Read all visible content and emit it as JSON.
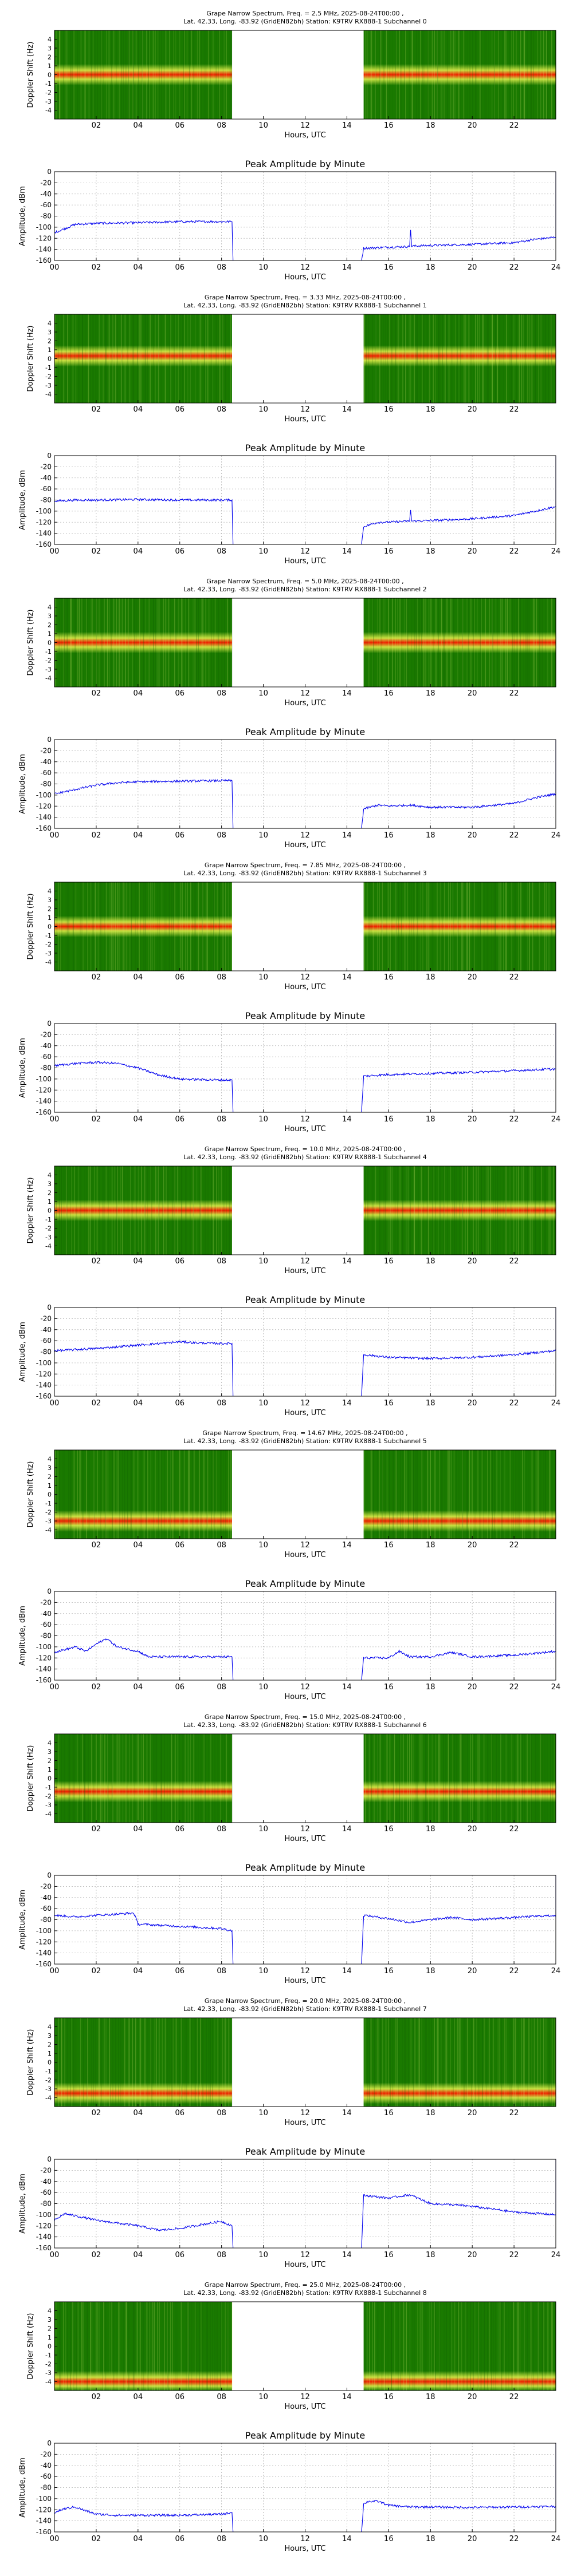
{
  "station_line": "Lat.  42.33, Long. -83.92 (GridEN82bh) Station: K9TRV RX888-1 Subchannel",
  "spectrum_ylabel": "Doppler Shift (Hz)",
  "amp_ylabel": "Amplitude, dBm",
  "xlabel": "Hours, UTC",
  "amp_title": "Peak Amplitude by Minute",
  "spectrum_yticks": [
    "-4",
    "-3",
    "-2",
    "-1",
    "0",
    "1",
    "2",
    "3",
    "4"
  ],
  "spectrum_xticks": [
    "02",
    "04",
    "06",
    "08",
    "10",
    "12",
    "14",
    "16",
    "18",
    "20",
    "22"
  ],
  "amp_yticks": [
    "0",
    "-20",
    "-40",
    "-60",
    "-80",
    "-100",
    "-120",
    "-140",
    "-160"
  ],
  "amp_xticks": [
    "00",
    "02",
    "04",
    "06",
    "08",
    "10",
    "12",
    "14",
    "16",
    "18",
    "20",
    "22",
    "24"
  ],
  "colors": {
    "trace": "#0000ee",
    "grid": "#b0b0b0",
    "spectrum_low": "#1a7a00",
    "spectrum_mid": "#c8e040",
    "spectrum_high": "#ee2000"
  },
  "panels": [
    {
      "title": "Grape Narrow Spectrum, Freq. = 2.5 MHz, 2025-08-24T00:00 ,",
      "subchannel": "0"
    },
    {
      "title": "Grape Narrow Spectrum, Freq. = 3.33 MHz, 2025-08-24T00:00 ,",
      "subchannel": "1"
    },
    {
      "title": "Grape Narrow Spectrum, Freq. = 5.0 MHz, 2025-08-24T00:00 ,",
      "subchannel": "2"
    },
    {
      "title": "Grape Narrow Spectrum, Freq. = 7.85 MHz, 2025-08-24T00:00 ,",
      "subchannel": "3"
    },
    {
      "title": "Grape Narrow Spectrum, Freq. = 10.0 MHz, 2025-08-24T00:00 ,",
      "subchannel": "4"
    },
    {
      "title": "Grape Narrow Spectrum, Freq. = 14.67 MHz, 2025-08-24T00:00 ,",
      "subchannel": "5"
    },
    {
      "title": "Grape Narrow Spectrum, Freq. = 15.0 MHz, 2025-08-24T00:00 ,",
      "subchannel": "6"
    },
    {
      "title": "Grape Narrow Spectrum, Freq. = 20.0 MHz, 2025-08-24T00:00 ,",
      "subchannel": "7"
    },
    {
      "title": "Grape Narrow Spectrum, Freq. = 25.0 MHz, 2025-08-24T00:00 ,",
      "subchannel": "8"
    }
  ],
  "chart_data": [
    {
      "type": "heatmap",
      "title": "Grape Narrow Spectrum, Freq. = 2.5 MHz",
      "xlabel": "Hours, UTC",
      "ylabel": "Doppler Shift (Hz)",
      "xlim": [
        0,
        24
      ],
      "ylim": [
        -5,
        5
      ],
      "data_gap_hours": [
        8.5,
        14.8
      ],
      "carrier_doppler_hz": 0
    },
    {
      "type": "line",
      "title": "Peak Amplitude by Minute",
      "xlabel": "Hours, UTC",
      "ylabel": "Amplitude, dBm",
      "xlim": [
        0,
        24
      ],
      "ylim": [
        -160,
        0
      ],
      "series": [
        {
          "x": [
            0,
            1,
            2,
            4,
            6,
            8,
            8.5,
            8.55,
            14.7,
            14.8,
            16,
            17,
            17.05,
            17.1,
            18,
            20,
            22,
            23,
            24
          ],
          "y": [
            -110,
            -95,
            -93,
            -92,
            -90,
            -90,
            -90,
            -160,
            -160,
            -138,
            -136,
            -135,
            -105,
            -134,
            -133,
            -131,
            -128,
            -122,
            -118
          ]
        }
      ]
    },
    {
      "type": "heatmap",
      "title": "Grape Narrow Spectrum, Freq. = 3.33 MHz",
      "xlabel": "Hours, UTC",
      "ylabel": "Doppler Shift (Hz)",
      "xlim": [
        0,
        24
      ],
      "ylim": [
        -5,
        5
      ],
      "data_gap_hours": [
        8.5,
        14.8
      ],
      "carrier_doppler_hz": 0.3
    },
    {
      "type": "line",
      "title": "Peak Amplitude by Minute",
      "xlabel": "Hours, UTC",
      "ylabel": "Amplitude, dBm",
      "xlim": [
        0,
        24
      ],
      "ylim": [
        -160,
        0
      ],
      "series": [
        {
          "x": [
            0,
            1,
            2,
            4,
            6,
            8,
            8.5,
            8.55,
            14.7,
            14.8,
            15.5,
            16,
            17,
            17.05,
            17.1,
            18,
            20,
            22,
            23,
            24
          ],
          "y": [
            -82,
            -80,
            -80,
            -79,
            -80,
            -80,
            -80,
            -160,
            -160,
            -128,
            -120,
            -120,
            -118,
            -98,
            -118,
            -117,
            -114,
            -108,
            -100,
            -92
          ]
        }
      ]
    },
    {
      "type": "heatmap",
      "title": "Grape Narrow Spectrum, Freq. = 5.0 MHz",
      "xlabel": "Hours, UTC",
      "ylabel": "Doppler Shift (Hz)",
      "xlim": [
        0,
        24
      ],
      "ylim": [
        -5,
        5
      ],
      "data_gap_hours": [
        8.5,
        14.8
      ],
      "carrier_doppler_hz": 0
    },
    {
      "type": "line",
      "title": "Peak Amplitude by Minute",
      "xlabel": "Hours, UTC",
      "ylabel": "Amplitude, dBm",
      "xlim": [
        0,
        24
      ],
      "ylim": [
        -160,
        0
      ],
      "series": [
        {
          "x": [
            0,
            1,
            2,
            3,
            4,
            6,
            8,
            8.5,
            8.55,
            14.7,
            14.8,
            15.5,
            16,
            17,
            18,
            20,
            22,
            23,
            24
          ],
          "y": [
            -98,
            -90,
            -82,
            -78,
            -76,
            -75,
            -74,
            -74,
            -160,
            -160,
            -125,
            -118,
            -120,
            -118,
            -122,
            -122,
            -115,
            -105,
            -98
          ]
        }
      ]
    },
    {
      "type": "heatmap",
      "title": "Grape Narrow Spectrum, Freq. = 7.85 MHz",
      "xlabel": "Hours, UTC",
      "ylabel": "Doppler Shift (Hz)",
      "xlim": [
        0,
        24
      ],
      "ylim": [
        -5,
        5
      ],
      "data_gap_hours": [
        8.5,
        14.8
      ],
      "carrier_doppler_hz": 0
    },
    {
      "type": "line",
      "title": "Peak Amplitude by Minute",
      "xlabel": "Hours, UTC",
      "ylabel": "Amplitude, dBm",
      "xlim": [
        0,
        24
      ],
      "ylim": [
        -160,
        0
      ],
      "series": [
        {
          "x": [
            0,
            1,
            2,
            3,
            4,
            5,
            6,
            8,
            8.5,
            8.55,
            14.7,
            14.8,
            16,
            18,
            20,
            22,
            24
          ],
          "y": [
            -76,
            -72,
            -70,
            -72,
            -80,
            -93,
            -100,
            -102,
            -102,
            -160,
            -160,
            -95,
            -92,
            -90,
            -88,
            -85,
            -82
          ]
        }
      ]
    },
    {
      "type": "heatmap",
      "title": "Grape Narrow Spectrum, Freq. = 10.0 MHz",
      "xlabel": "Hours, UTC",
      "ylabel": "Doppler Shift (Hz)",
      "xlim": [
        0,
        24
      ],
      "ylim": [
        -5,
        5
      ],
      "data_gap_hours": [
        8.5,
        14.8
      ],
      "carrier_doppler_hz": 0
    },
    {
      "type": "line",
      "title": "Peak Amplitude by Minute",
      "xlabel": "Hours, UTC",
      "ylabel": "Amplitude, dBm",
      "xlim": [
        0,
        24
      ],
      "ylim": [
        -160,
        0
      ],
      "series": [
        {
          "x": [
            0,
            1,
            2,
            4,
            6,
            7,
            8,
            8.5,
            8.55,
            14.7,
            14.8,
            16,
            18,
            20,
            22,
            24
          ],
          "y": [
            -78,
            -76,
            -74,
            -68,
            -62,
            -64,
            -65,
            -65,
            -160,
            -160,
            -85,
            -90,
            -92,
            -90,
            -85,
            -78
          ]
        }
      ]
    },
    {
      "type": "heatmap",
      "title": "Grape Narrow Spectrum, Freq. = 14.67 MHz",
      "xlabel": "Hours, UTC",
      "ylabel": "Doppler Shift (Hz)",
      "xlim": [
        0,
        24
      ],
      "ylim": [
        -5,
        5
      ],
      "data_gap_hours": [
        8.5,
        14.8
      ],
      "carrier_doppler_hz": -3
    },
    {
      "type": "line",
      "title": "Peak Amplitude by Minute",
      "xlabel": "Hours, UTC",
      "ylabel": "Amplitude, dBm",
      "xlim": [
        0,
        24
      ],
      "ylim": [
        -160,
        0
      ],
      "series": [
        {
          "x": [
            0,
            1,
            1.5,
            2,
            2.5,
            3,
            4,
            4.5,
            5,
            6,
            8,
            8.5,
            8.55,
            14.7,
            14.8,
            16,
            16.5,
            17,
            18,
            19,
            20,
            22,
            24
          ],
          "y": [
            -110,
            -100,
            -108,
            -95,
            -85,
            -100,
            -108,
            -118,
            -118,
            -118,
            -118,
            -118,
            -160,
            -160,
            -120,
            -120,
            -108,
            -118,
            -118,
            -110,
            -118,
            -115,
            -108
          ]
        }
      ]
    },
    {
      "type": "heatmap",
      "title": "Grape Narrow Spectrum, Freq. = 15.0 MHz",
      "xlabel": "Hours, UTC",
      "ylabel": "Doppler Shift (Hz)",
      "xlim": [
        0,
        24
      ],
      "ylim": [
        -5,
        5
      ],
      "data_gap_hours": [
        8.5,
        14.8
      ],
      "carrier_doppler_hz": -1.5
    },
    {
      "type": "line",
      "title": "Peak Amplitude by Minute",
      "xlabel": "Hours, UTC",
      "ylabel": "Amplitude, dBm",
      "xlim": [
        0,
        24
      ],
      "ylim": [
        -160,
        0
      ],
      "series": [
        {
          "x": [
            0,
            1,
            2,
            3,
            3.8,
            4,
            5,
            6,
            8,
            8.5,
            8.55,
            14.7,
            14.8,
            16,
            17,
            18,
            19,
            20,
            22,
            24
          ],
          "y": [
            -72,
            -75,
            -72,
            -70,
            -68,
            -88,
            -90,
            -92,
            -96,
            -100,
            -160,
            -160,
            -72,
            -78,
            -85,
            -80,
            -76,
            -80,
            -76,
            -72
          ]
        }
      ]
    },
    {
      "type": "heatmap",
      "title": "Grape Narrow Spectrum, Freq. = 20.0 MHz",
      "xlabel": "Hours, UTC",
      "ylabel": "Doppler Shift (Hz)",
      "xlim": [
        0,
        24
      ],
      "ylim": [
        -5,
        5
      ],
      "data_gap_hours": [
        8.5,
        14.8
      ],
      "carrier_doppler_hz": -3.5
    },
    {
      "type": "line",
      "title": "Peak Amplitude by Minute",
      "xlabel": "Hours, UTC",
      "ylabel": "Amplitude, dBm",
      "xlim": [
        0,
        24
      ],
      "ylim": [
        -160,
        0
      ],
      "series": [
        {
          "x": [
            0,
            0.5,
            1,
            2,
            3,
            4,
            5,
            6,
            7,
            8,
            8.5,
            8.55,
            14.7,
            14.8,
            15.5,
            16,
            17,
            18,
            19,
            20,
            22,
            24
          ],
          "y": [
            -110,
            -98,
            -102,
            -110,
            -115,
            -120,
            -128,
            -125,
            -118,
            -112,
            -120,
            -160,
            -160,
            -65,
            -68,
            -70,
            -64,
            -80,
            -82,
            -85,
            -95,
            -100
          ]
        }
      ]
    },
    {
      "type": "heatmap",
      "title": "Grape Narrow Spectrum, Freq. = 25.0 MHz",
      "xlabel": "Hours, UTC",
      "ylabel": "Doppler Shift (Hz)",
      "xlim": [
        0,
        24
      ],
      "ylim": [
        -5,
        5
      ],
      "data_gap_hours": [
        8.5,
        14.8
      ],
      "carrier_doppler_hz": -4
    },
    {
      "type": "line",
      "title": "Peak Amplitude by Minute",
      "xlabel": "Hours, UTC",
      "ylabel": "Amplitude, dBm",
      "xlim": [
        0,
        24
      ],
      "ylim": [
        -160,
        0
      ],
      "series": [
        {
          "x": [
            0,
            0.5,
            1,
            1.5,
            2,
            3,
            4,
            6,
            8,
            8.5,
            8.55,
            14.7,
            14.8,
            15,
            15.5,
            16,
            17,
            18,
            20,
            22,
            24
          ],
          "y": [
            -125,
            -118,
            -115,
            -122,
            -128,
            -130,
            -130,
            -130,
            -128,
            -125,
            -160,
            -160,
            -110,
            -105,
            -105,
            -112,
            -115,
            -115,
            -116,
            -115,
            -114
          ]
        }
      ]
    }
  ]
}
